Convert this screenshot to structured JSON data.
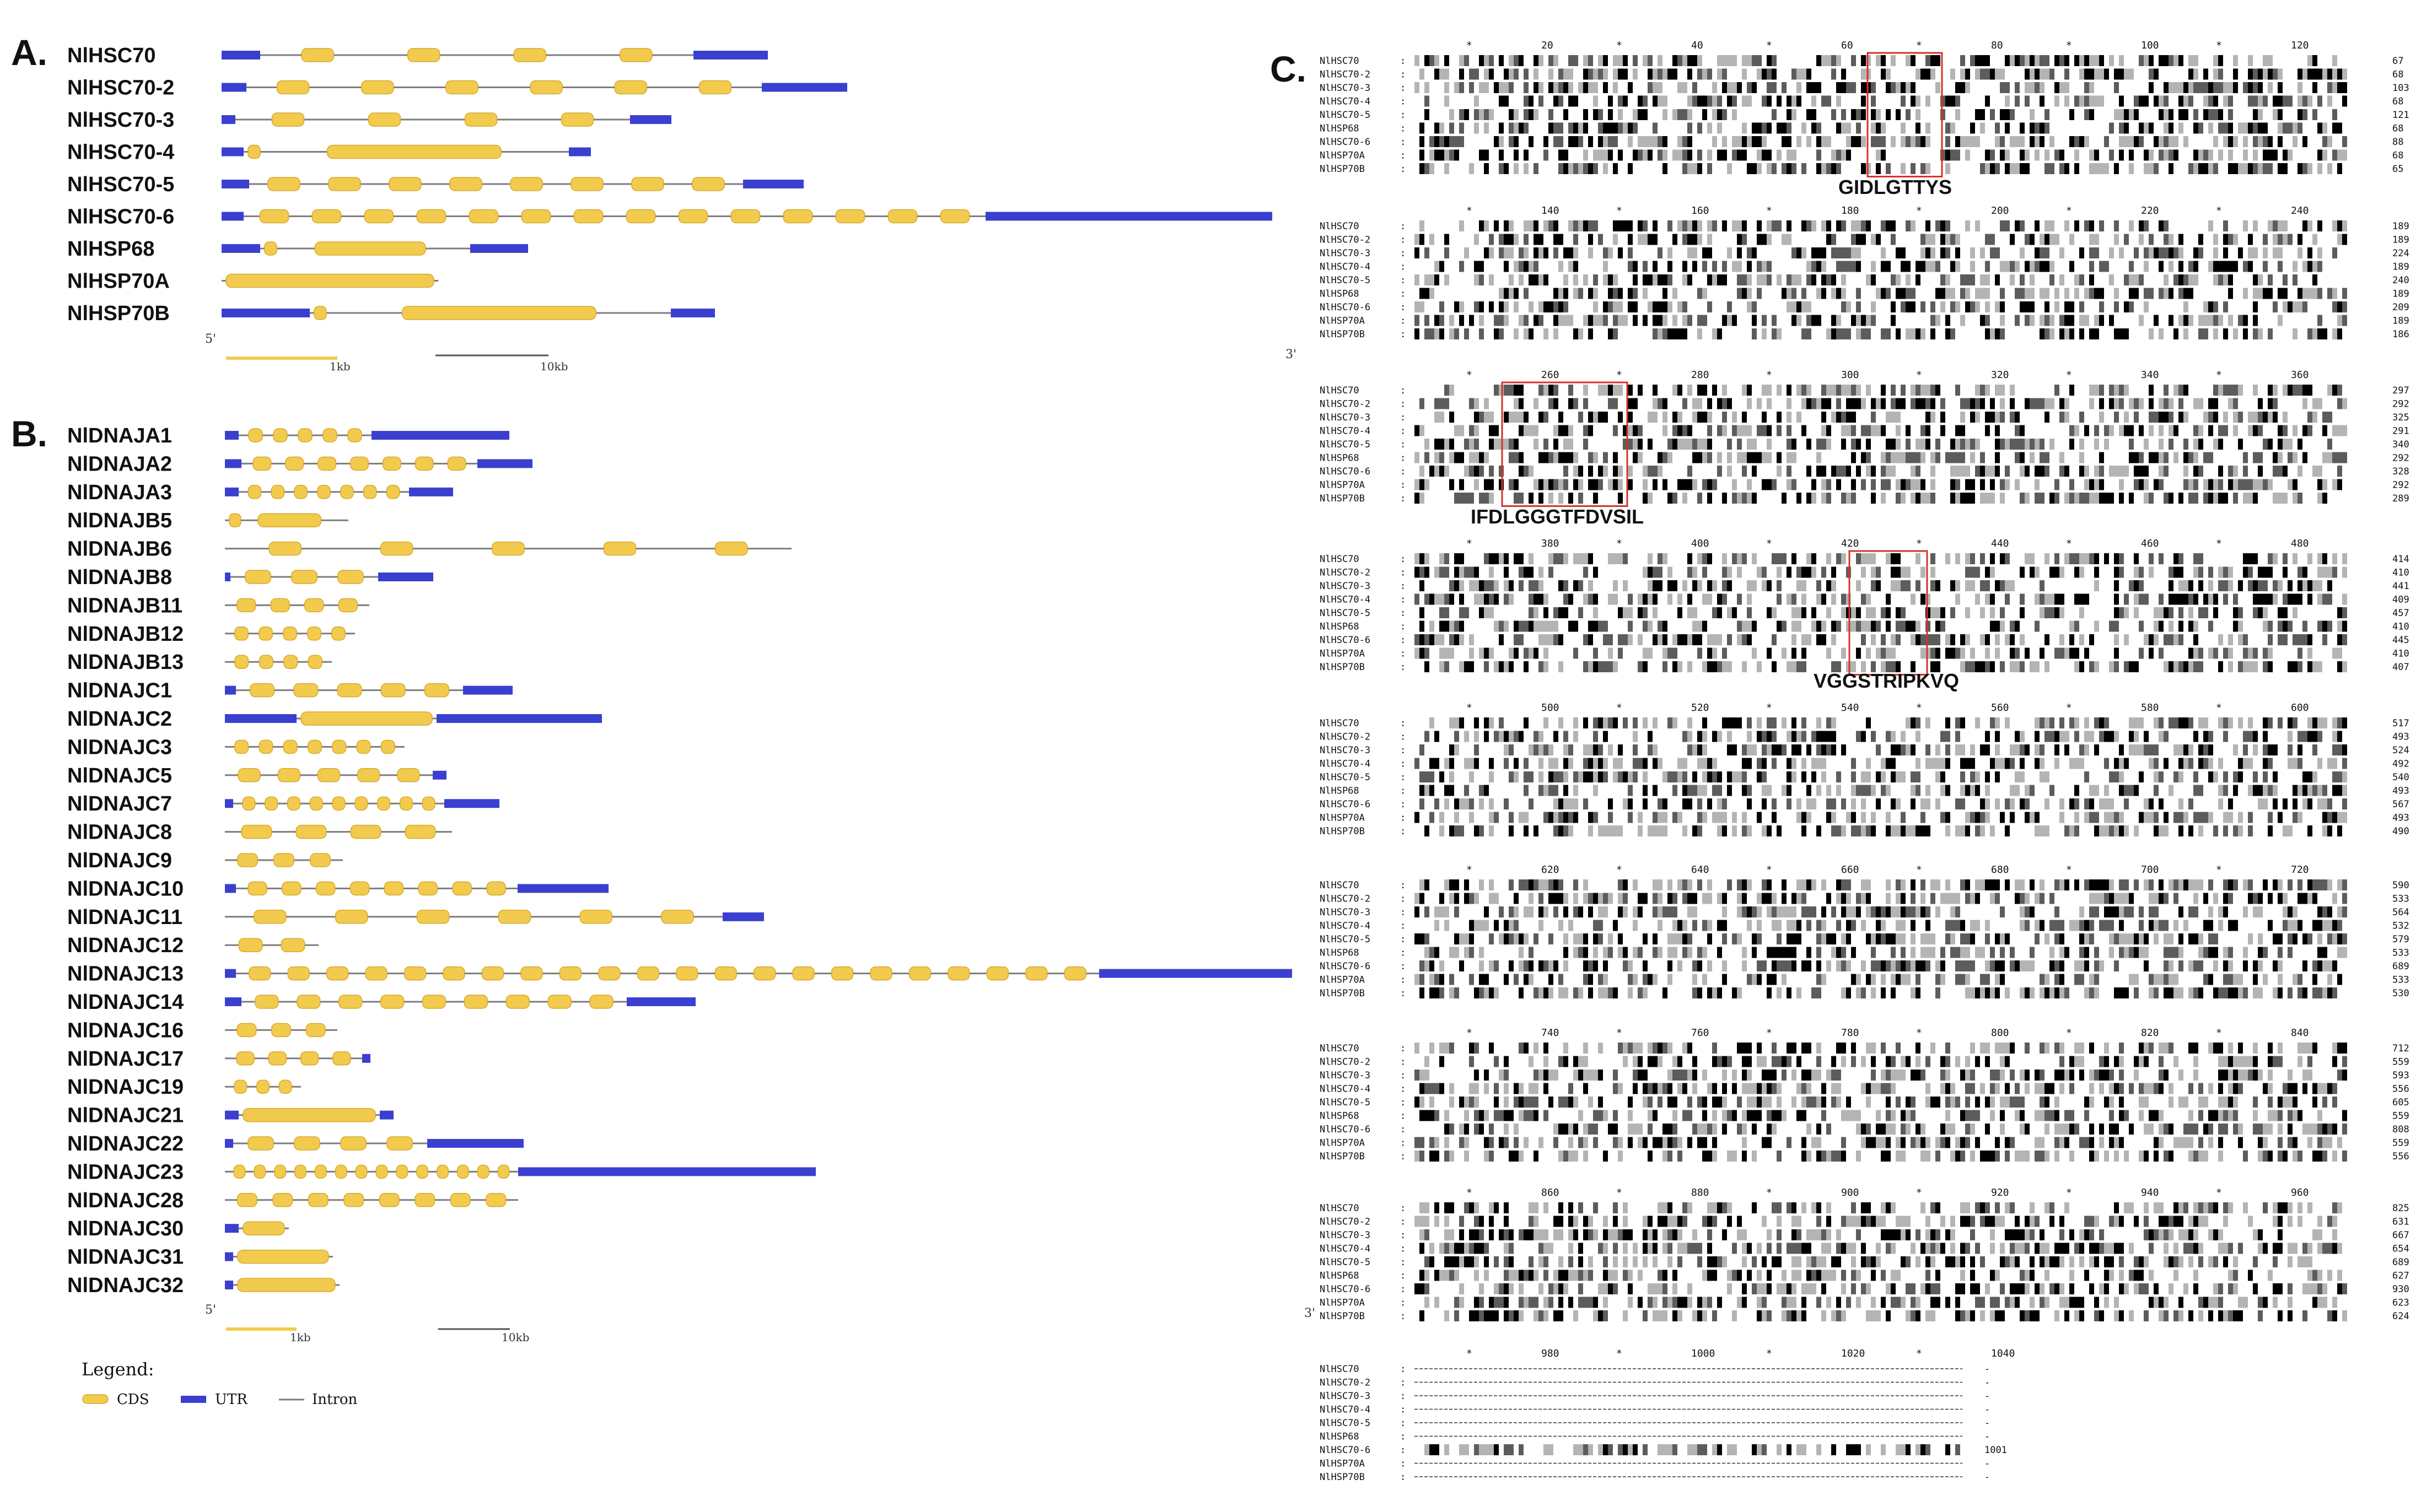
{
  "panels": {
    "a_label": "A.",
    "b_label": "B.",
    "c_label": "C."
  },
  "colors": {
    "cds": "#f2cb4e",
    "cds_edge": "#d8a92a",
    "utr": "#3b3fd0",
    "intron": "#7d7d7d",
    "conserved_black": "#000000",
    "conserved_dark": "#5c5c5c",
    "conserved_light": "#b4b4b4",
    "motif_box": "#d8302c"
  },
  "panel_a": {
    "genes": [
      "NlHSC70",
      "NlHSC70-2",
      "NlHSC70-3",
      "NlHSC70-4",
      "NlHSC70-5",
      "NlHSC70-6",
      "NlHSP68",
      "NlHSP70A",
      "NlHSP70B"
    ],
    "scale": {
      "five_prime": "5'",
      "three_prime": "3'",
      "label_1kb": "1kb",
      "label_10kb": "10kb"
    }
  },
  "panel_b": {
    "genes": [
      "NlDNAJA1",
      "NlDNAJA2",
      "NlDNAJA3",
      "NlDNAJB5",
      "NlDNAJB6",
      "NlDNAJB8",
      "NlDNAJB11",
      "NlDNAJB12",
      "NlDNAJB13",
      "NlDNAJC1",
      "NlDNAJC2",
      "NlDNAJC3",
      "NlDNAJC5",
      "NlDNAJC7",
      "NlDNAJC8",
      "NlDNAJC9",
      "NlDNAJC10",
      "NlDNAJC11",
      "NlDNAJC12",
      "NlDNAJC13",
      "NlDNAJC14",
      "NlDNAJC16",
      "NlDNAJC17",
      "NlDNAJC19",
      "NlDNAJC21",
      "NlDNAJC22",
      "NlDNAJC23",
      "NlDNAJC28",
      "NlDNAJC30",
      "NlDNAJC31",
      "NlDNAJC32"
    ],
    "scale": {
      "five_prime": "5'",
      "three_prime": "3'",
      "label_1kb": "1kb",
      "label_10kb": "10kb"
    }
  },
  "legend": {
    "title": "Legend:",
    "cds": "CDS",
    "utr": "UTR",
    "intron": "Intron"
  },
  "panel_c": {
    "sequence_names": [
      "NlHSC70",
      "NlHSC70-2",
      "NlHSC70-3",
      "NlHSC70-4",
      "NlHSC70-5",
      "NlHSP68",
      "NlHSC70-6",
      "NlHSP70A",
      "NlHSP70B"
    ],
    "motifs": [
      "GIDLGTTYS",
      "IFDLGGGTFDVSIL",
      "VGGSTRIPKVQ"
    ],
    "blocks": [
      {
        "ruler": [
          20,
          40,
          60,
          80,
          100,
          120
        ],
        "ends": [
          "67",
          "68",
          "103",
          "68",
          "121",
          "68",
          "88",
          "68",
          "65"
        ]
      },
      {
        "ruler": [
          140,
          160,
          180,
          200,
          220,
          240
        ],
        "ends": [
          "189",
          "189",
          "224",
          "189",
          "240",
          "189",
          "209",
          "189",
          "186"
        ]
      },
      {
        "ruler": [
          260,
          280,
          300,
          320,
          340,
          360
        ],
        "ends": [
          "297",
          "292",
          "325",
          "291",
          "340",
          "292",
          "328",
          "292",
          "289"
        ]
      },
      {
        "ruler": [
          380,
          400,
          420,
          440,
          460,
          480
        ],
        "ends": [
          "414",
          "410",
          "441",
          "409",
          "457",
          "410",
          "445",
          "410",
          "407"
        ]
      },
      {
        "ruler": [
          500,
          520,
          540,
          560,
          580,
          600
        ],
        "ends": [
          "517",
          "493",
          "524",
          "492",
          "540",
          "493",
          "567",
          "493",
          "490"
        ]
      },
      {
        "ruler": [
          620,
          640,
          660,
          680,
          700,
          720
        ],
        "ends": [
          "590",
          "533",
          "564",
          "532",
          "579",
          "533",
          "689",
          "533",
          "530"
        ]
      },
      {
        "ruler": [
          740,
          760,
          780,
          800,
          820,
          840
        ],
        "ends": [
          "712",
          "559",
          "593",
          "556",
          "605",
          "559",
          "808",
          "559",
          "556"
        ]
      },
      {
        "ruler": [
          860,
          880,
          900,
          920,
          940,
          960
        ],
        "ends": [
          "825",
          "631",
          "667",
          "654",
          "689",
          "627",
          "930",
          "623",
          "624"
        ]
      },
      {
        "ruler": [
          980,
          1000,
          1020,
          1040
        ],
        "ends": [
          "-",
          "-",
          "-",
          "-",
          "-",
          "-",
          "1001",
          "-",
          "-"
        ]
      }
    ]
  }
}
